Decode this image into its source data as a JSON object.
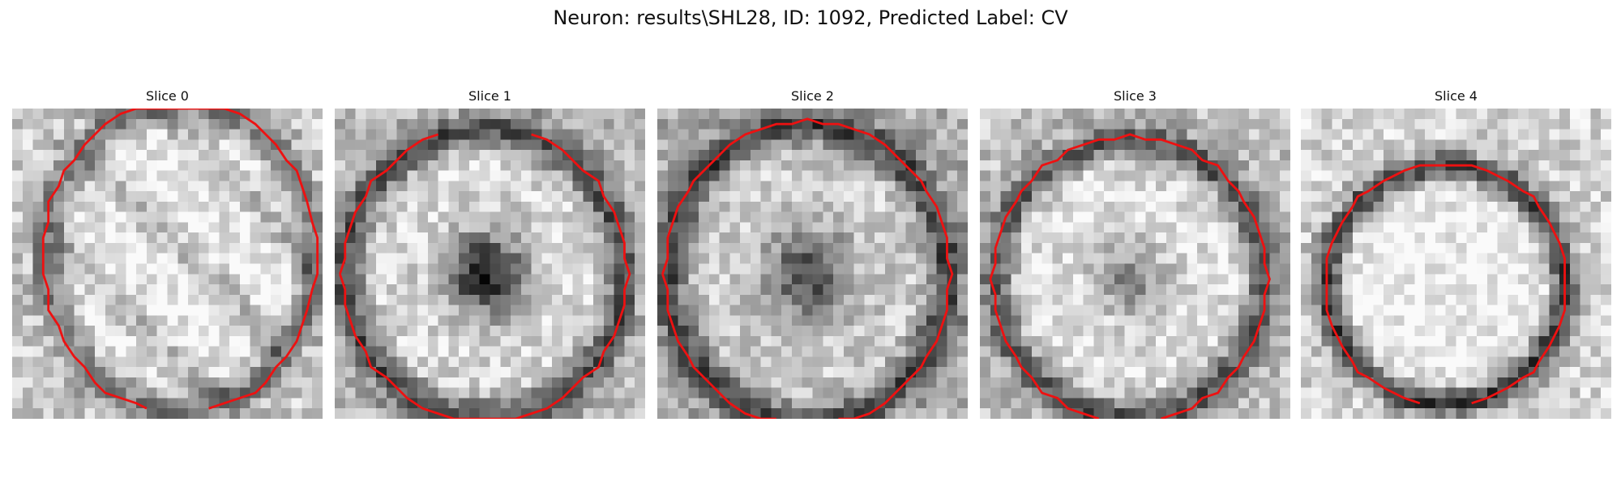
{
  "figure": {
    "title": "Neuron: results\\SHL28, ID: 1092, Predicted Label: CV"
  },
  "colors": {
    "contour": "#ee1111",
    "background": "#ffffff"
  },
  "image_grid_size": 30,
  "panels": [
    {
      "title": "Slice 0",
      "image": {
        "center": [
          16.2,
          14.3
        ],
        "radius": [
          13.0,
          15.0
        ],
        "ring": 0.45,
        "darkCore": 0.0,
        "brightness": 0.92,
        "diagonalBands": true,
        "contourPartial": "bottom-gap"
      }
    },
    {
      "title": "Slice 1",
      "image": {
        "center": [
          14.5,
          16.0
        ],
        "radius": [
          13.5,
          14.0
        ],
        "ring": 0.55,
        "darkCore": 0.75,
        "brightness": 0.85,
        "diagonalBands": false,
        "contourPartial": "top-gap"
      }
    },
    {
      "title": "Slice 2",
      "image": {
        "center": [
          14.5,
          16.0
        ],
        "radius": [
          13.5,
          14.5
        ],
        "ring": 0.55,
        "darkCore": 0.55,
        "brightness": 0.8,
        "diagonalBands": false,
        "contourPartial": "bottom-gap"
      }
    },
    {
      "title": "Slice 3",
      "image": {
        "center": [
          14.5,
          16.5
        ],
        "radius": [
          13.0,
          13.5
        ],
        "ring": 0.55,
        "darkCore": 0.35,
        "brightness": 0.88,
        "diagonalBands": false,
        "contourPartial": "bottom-gap"
      }
    },
    {
      "title": "Slice 4",
      "image": {
        "center": [
          14.0,
          17.0
        ],
        "radius": [
          11.5,
          11.5
        ],
        "ring": 0.7,
        "darkCore": 0.0,
        "brightness": 0.95,
        "diagonalBands": false,
        "contourPartial": "bottom-gap"
      }
    }
  ]
}
